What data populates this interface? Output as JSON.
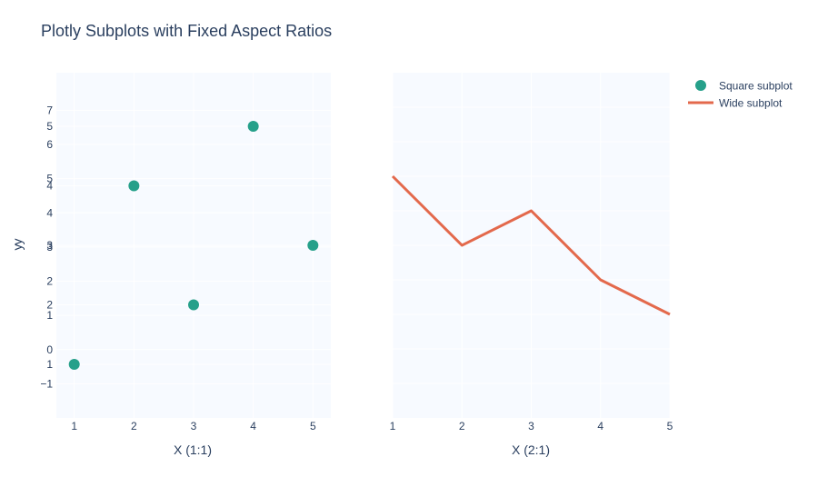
{
  "colors": {
    "plot_bg": "#f7faff",
    "grid": "#ffffff",
    "text": "#2a3f5f",
    "scatter": "#26a08a",
    "line": "#e3694c"
  },
  "chart_data": {
    "type": "scatter",
    "title": "Plotly Subplots with Fixed Aspect Ratios",
    "legend_placement": "top-right",
    "legend": [
      {
        "name": "Square subplot",
        "marker": "circle",
        "color": "#26a08a"
      },
      {
        "name": "Wide subplot",
        "marker": "line",
        "color": "#e3694c"
      }
    ],
    "subplots": [
      {
        "type": "scatter",
        "series_name": "Square subplot",
        "x": [
          1,
          2,
          3,
          4,
          5
        ],
        "y": [
          1,
          4,
          2,
          5,
          3
        ],
        "xlabel": "X (1:1)",
        "ylabel": "y",
        "xlim": [
          0.7,
          5.3
        ],
        "ylim": [
          0.1,
          5.9
        ],
        "x_ticks": [
          "1",
          "2",
          "3",
          "4",
          "5"
        ],
        "y_ticks_a": [
          "1",
          "2",
          "3",
          "4",
          "5"
        ],
        "y_ticks_b": [
          "−1",
          "0",
          "1",
          "2",
          "3",
          "4",
          "5",
          "6",
          "7"
        ],
        "grid": true
      },
      {
        "type": "line",
        "series_name": "Wide subplot",
        "x": [
          1,
          2,
          3,
          4,
          5
        ],
        "y": [
          5,
          3,
          4,
          2,
          1
        ],
        "xlabel": "X (2:1)",
        "ylabel": "y",
        "xlim": [
          1,
          5
        ],
        "ylim": [
          -2,
          8
        ],
        "x_ticks": [
          "1",
          "2",
          "3",
          "4",
          "5"
        ],
        "grid": true
      }
    ]
  }
}
